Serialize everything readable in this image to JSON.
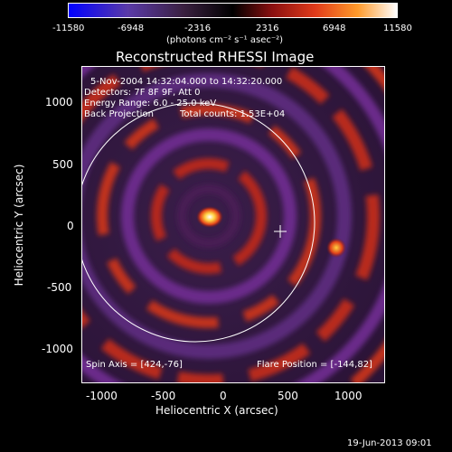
{
  "colorbar": {
    "ticks": [
      "-11580",
      "-6948",
      "-2316",
      "2316",
      "6948",
      "11580"
    ],
    "units": "(photons cm⁻² s⁻¹ asec⁻²)"
  },
  "title": "Reconstructed RHESSI Image",
  "info": {
    "line1": "5-Nov-2004 14:32:04.000 to 14:32:20.000",
    "line2": "Detectors: 7F 8F 9F, Att 0",
    "line3": "Energy Range: 6.0 - 25.0 keV",
    "line4a": "Back Projection",
    "line4b": "Total counts: 1.53E+04",
    "spin_axis": "Spin Axis = [424,-76]",
    "flare_position": "Flare Position = [-144,82]"
  },
  "axes": {
    "xlabel": "Heliocentric X (arcsec)",
    "ylabel": "Heliocentric Y (arcsec)",
    "xticks": [
      "-1000",
      "-500",
      "0",
      "500",
      "1000"
    ],
    "yticks": [
      "1000",
      "500",
      "0",
      "-500",
      "-1000"
    ]
  },
  "footer": {
    "date": "19-Jun-2013 09:01"
  },
  "colors": {
    "background": "#000000",
    "axis": "#ffffff"
  }
}
